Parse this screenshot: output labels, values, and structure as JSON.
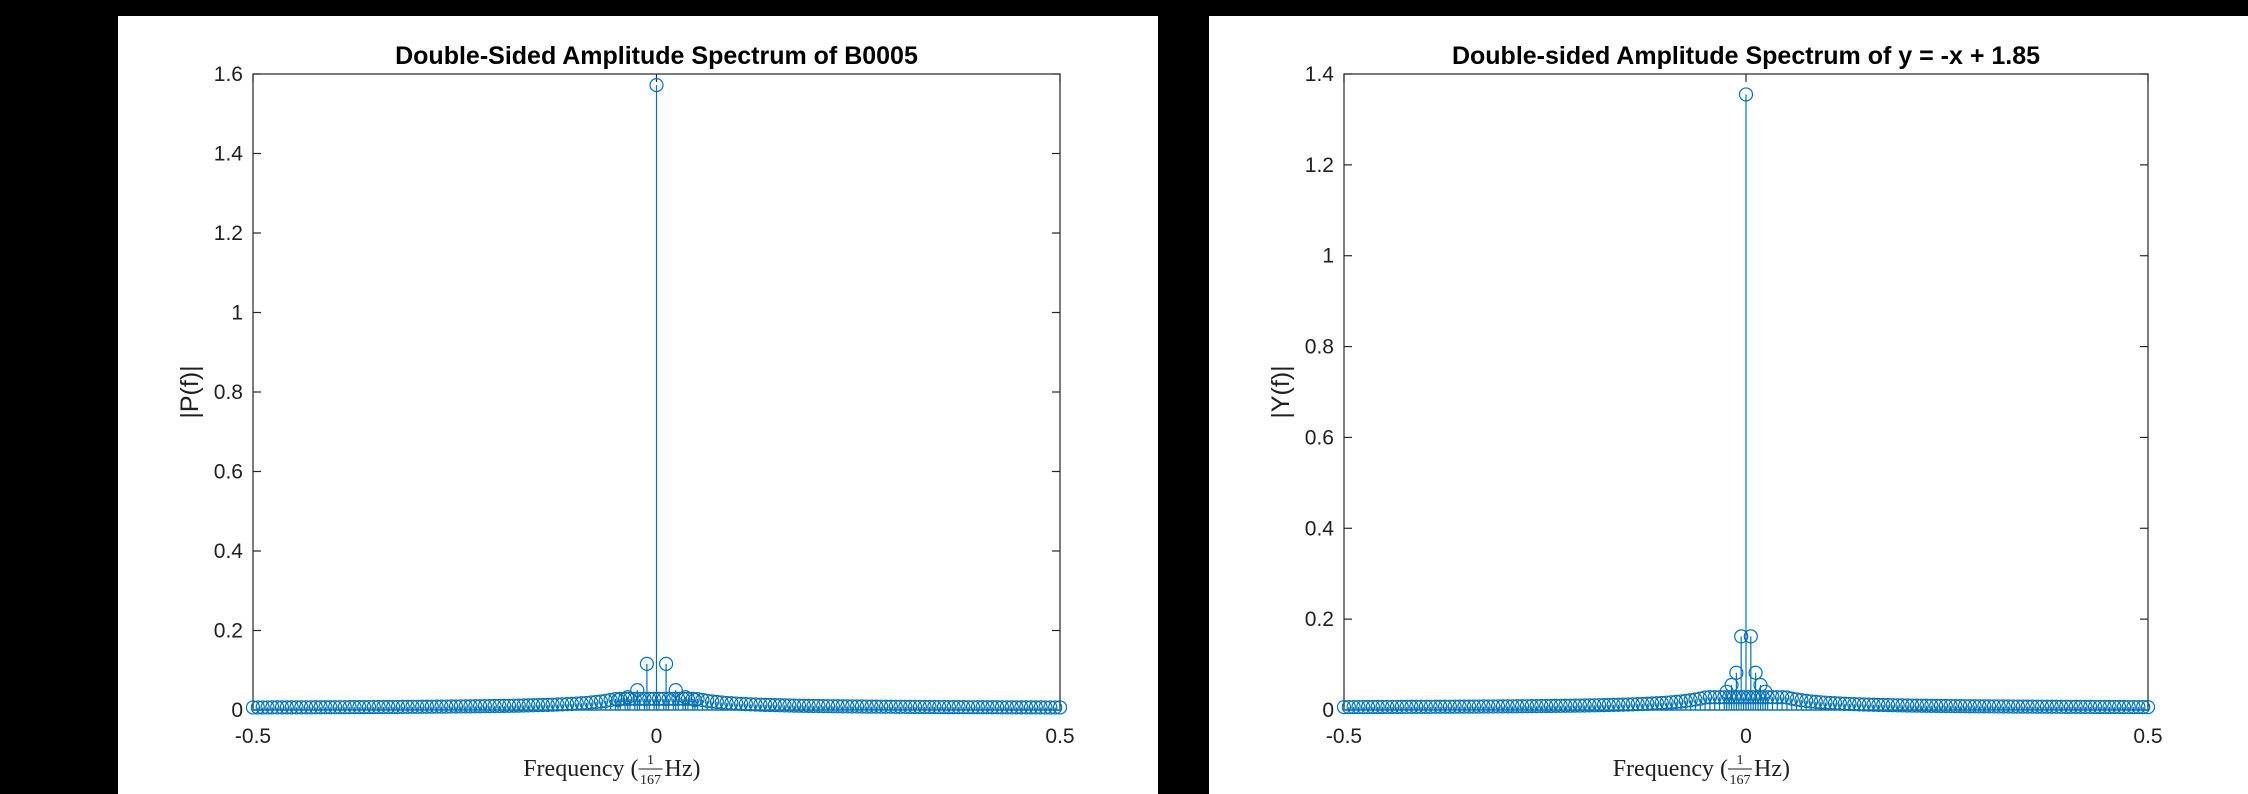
{
  "chart_data": [
    {
      "type": "stem",
      "title": "Double-Sided Amplitude Spectrum of B0005",
      "ylabel": "|P(f)|",
      "xlabel": {
        "prefix": "Frequency (",
        "frac_num": "1",
        "frac_den": "167",
        "suffix": " Hz)"
      },
      "xlim": [
        -0.5,
        0.5
      ],
      "ylim": [
        0,
        1.6
      ],
      "xticks": [
        -0.5,
        0,
        0.5
      ],
      "xtick_labels": [
        "-0.5",
        "0",
        "0.5"
      ],
      "yticks": [
        0,
        0.2,
        0.4,
        0.6,
        0.8,
        1,
        1.2,
        1.4,
        1.6
      ],
      "ytick_labels": [
        "0",
        "0.2",
        "0.4",
        "0.6",
        "0.8",
        "1",
        "1.2",
        "1.4",
        "1.6"
      ],
      "n_points": 168,
      "peak": {
        "x": 0,
        "y": 1.572
      },
      "series": [
        {
          "x": [
            -0.0119,
            0.0119,
            -0.0238,
            0.0238,
            -0.0357,
            0.0357,
            -0.0476,
            0.0476
          ],
          "y": [
            0.116,
            0.116,
            0.05,
            0.05,
            0.032,
            0.032,
            0.025,
            0.025
          ]
        }
      ],
      "floor_amplitude": 0.004,
      "color": "#0072BD",
      "grid": false
    },
    {
      "type": "stem",
      "title": "Double-sided Amplitude Spectrum of y = -x + 1.85",
      "ylabel": "|Y(f)|",
      "xlabel": {
        "prefix": "Frequency (",
        "frac_num": "1",
        "frac_den": "167",
        "suffix": " Hz)"
      },
      "xlim": [
        -0.5,
        0.5
      ],
      "ylim": [
        0,
        1.4
      ],
      "xticks": [
        -0.5,
        0,
        0.5
      ],
      "xtick_labels": [
        "-0.5",
        "0",
        "0.5"
      ],
      "yticks": [
        0,
        0.2,
        0.4,
        0.6,
        0.8,
        1,
        1.2,
        1.4
      ],
      "ytick_labels": [
        "0",
        "0.2",
        "0.4",
        "0.6",
        "0.8",
        "1",
        "1.2",
        "1.4"
      ],
      "n_points": 168,
      "peak": {
        "x": 0,
        "y": 1.355
      },
      "series": [
        {
          "x": [
            -0.006,
            0.006,
            -0.012,
            0.012,
            -0.018,
            0.018,
            -0.024,
            0.024
          ],
          "y": [
            0.162,
            0.162,
            0.082,
            0.082,
            0.055,
            0.055,
            0.04,
            0.04
          ]
        }
      ],
      "floor_amplitude": 0.004,
      "color": "#0072BD",
      "grid": false
    }
  ]
}
